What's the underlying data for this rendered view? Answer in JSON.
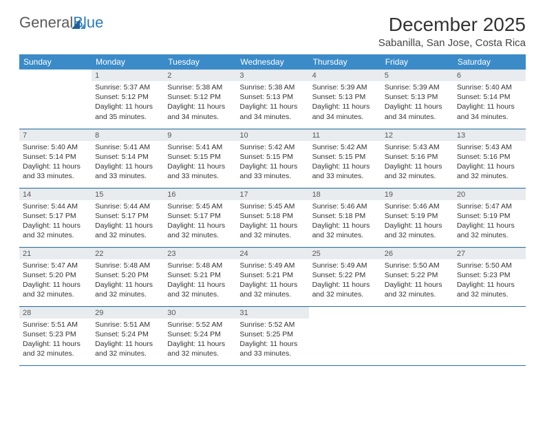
{
  "brand": {
    "part1": "General",
    "part2": "Blue"
  },
  "title": "December 2025",
  "subtitle": "Sabanilla, San Jose, Costa Rica",
  "colors": {
    "header_bg": "#3b8bc8",
    "header_text": "#ffffff",
    "daynum_bg": "#e9ecef",
    "row_divider": "#2a6fa3",
    "logo_gray": "#5a5a5a",
    "logo_blue": "#2a7ab8",
    "body_text": "#333333"
  },
  "day_labels": [
    "Sunday",
    "Monday",
    "Tuesday",
    "Wednesday",
    "Thursday",
    "Friday",
    "Saturday"
  ],
  "first_weekday_offset": 1,
  "days": [
    {
      "n": 1,
      "sunrise": "5:37 AM",
      "sunset": "5:12 PM",
      "daylight": "11 hours and 35 minutes."
    },
    {
      "n": 2,
      "sunrise": "5:38 AM",
      "sunset": "5:12 PM",
      "daylight": "11 hours and 34 minutes."
    },
    {
      "n": 3,
      "sunrise": "5:38 AM",
      "sunset": "5:13 PM",
      "daylight": "11 hours and 34 minutes."
    },
    {
      "n": 4,
      "sunrise": "5:39 AM",
      "sunset": "5:13 PM",
      "daylight": "11 hours and 34 minutes."
    },
    {
      "n": 5,
      "sunrise": "5:39 AM",
      "sunset": "5:13 PM",
      "daylight": "11 hours and 34 minutes."
    },
    {
      "n": 6,
      "sunrise": "5:40 AM",
      "sunset": "5:14 PM",
      "daylight": "11 hours and 34 minutes."
    },
    {
      "n": 7,
      "sunrise": "5:40 AM",
      "sunset": "5:14 PM",
      "daylight": "11 hours and 33 minutes."
    },
    {
      "n": 8,
      "sunrise": "5:41 AM",
      "sunset": "5:14 PM",
      "daylight": "11 hours and 33 minutes."
    },
    {
      "n": 9,
      "sunrise": "5:41 AM",
      "sunset": "5:15 PM",
      "daylight": "11 hours and 33 minutes."
    },
    {
      "n": 10,
      "sunrise": "5:42 AM",
      "sunset": "5:15 PM",
      "daylight": "11 hours and 33 minutes."
    },
    {
      "n": 11,
      "sunrise": "5:42 AM",
      "sunset": "5:15 PM",
      "daylight": "11 hours and 33 minutes."
    },
    {
      "n": 12,
      "sunrise": "5:43 AM",
      "sunset": "5:16 PM",
      "daylight": "11 hours and 32 minutes."
    },
    {
      "n": 13,
      "sunrise": "5:43 AM",
      "sunset": "5:16 PM",
      "daylight": "11 hours and 32 minutes."
    },
    {
      "n": 14,
      "sunrise": "5:44 AM",
      "sunset": "5:17 PM",
      "daylight": "11 hours and 32 minutes."
    },
    {
      "n": 15,
      "sunrise": "5:44 AM",
      "sunset": "5:17 PM",
      "daylight": "11 hours and 32 minutes."
    },
    {
      "n": 16,
      "sunrise": "5:45 AM",
      "sunset": "5:17 PM",
      "daylight": "11 hours and 32 minutes."
    },
    {
      "n": 17,
      "sunrise": "5:45 AM",
      "sunset": "5:18 PM",
      "daylight": "11 hours and 32 minutes."
    },
    {
      "n": 18,
      "sunrise": "5:46 AM",
      "sunset": "5:18 PM",
      "daylight": "11 hours and 32 minutes."
    },
    {
      "n": 19,
      "sunrise": "5:46 AM",
      "sunset": "5:19 PM",
      "daylight": "11 hours and 32 minutes."
    },
    {
      "n": 20,
      "sunrise": "5:47 AM",
      "sunset": "5:19 PM",
      "daylight": "11 hours and 32 minutes."
    },
    {
      "n": 21,
      "sunrise": "5:47 AM",
      "sunset": "5:20 PM",
      "daylight": "11 hours and 32 minutes."
    },
    {
      "n": 22,
      "sunrise": "5:48 AM",
      "sunset": "5:20 PM",
      "daylight": "11 hours and 32 minutes."
    },
    {
      "n": 23,
      "sunrise": "5:48 AM",
      "sunset": "5:21 PM",
      "daylight": "11 hours and 32 minutes."
    },
    {
      "n": 24,
      "sunrise": "5:49 AM",
      "sunset": "5:21 PM",
      "daylight": "11 hours and 32 minutes."
    },
    {
      "n": 25,
      "sunrise": "5:49 AM",
      "sunset": "5:22 PM",
      "daylight": "11 hours and 32 minutes."
    },
    {
      "n": 26,
      "sunrise": "5:50 AM",
      "sunset": "5:22 PM",
      "daylight": "11 hours and 32 minutes."
    },
    {
      "n": 27,
      "sunrise": "5:50 AM",
      "sunset": "5:23 PM",
      "daylight": "11 hours and 32 minutes."
    },
    {
      "n": 28,
      "sunrise": "5:51 AM",
      "sunset": "5:23 PM",
      "daylight": "11 hours and 32 minutes."
    },
    {
      "n": 29,
      "sunrise": "5:51 AM",
      "sunset": "5:24 PM",
      "daylight": "11 hours and 32 minutes."
    },
    {
      "n": 30,
      "sunrise": "5:52 AM",
      "sunset": "5:24 PM",
      "daylight": "11 hours and 32 minutes."
    },
    {
      "n": 31,
      "sunrise": "5:52 AM",
      "sunset": "5:25 PM",
      "daylight": "11 hours and 33 minutes."
    }
  ],
  "labels": {
    "sunrise": "Sunrise:",
    "sunset": "Sunset:",
    "daylight": "Daylight:"
  }
}
